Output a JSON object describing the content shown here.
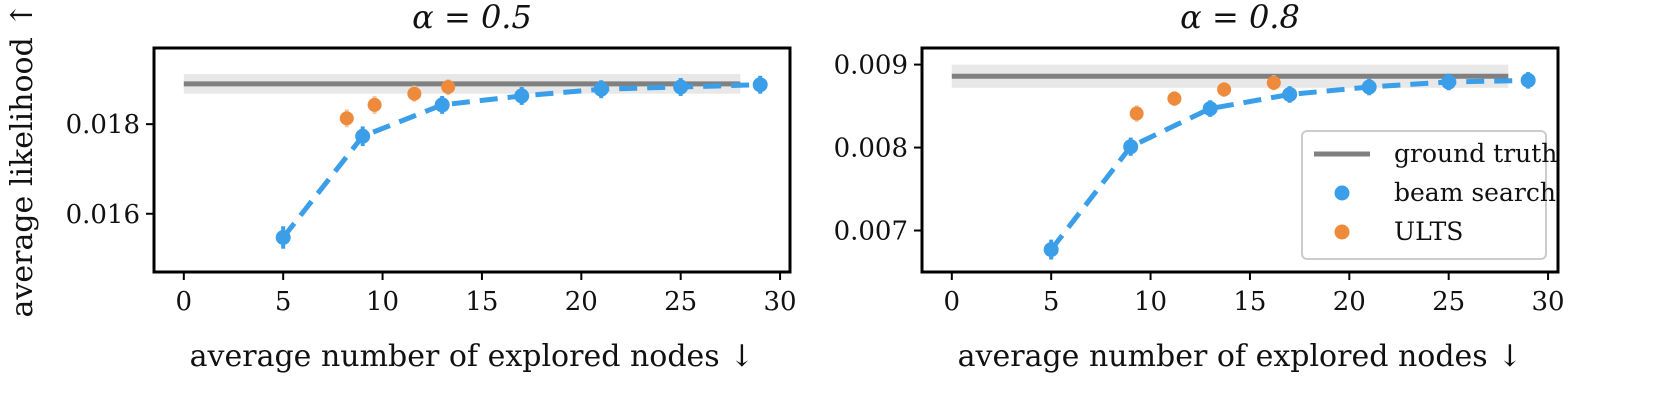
{
  "ylabel": "average likelihood ↑",
  "legend": {
    "entries": [
      {
        "label": "ground truth",
        "kind": "line",
        "color": "#808080"
      },
      {
        "label": "beam search",
        "kind": "dot",
        "color": "#3a9ee8"
      },
      {
        "label": "ULTS",
        "kind": "dot",
        "color": "#ee8a3c"
      }
    ],
    "placement": "lower-right of right panel"
  },
  "colors": {
    "beam": "#3a9ee8",
    "ults": "#ee8a3c",
    "truth": "#808080",
    "truth_band": "#e8e8e8"
  },
  "chart_data": [
    {
      "type": "line",
      "title": "α = 0.5",
      "xlabel": "average number of explored nodes ↓",
      "ylabel": "average likelihood ↑",
      "xlim": [
        -1.5,
        30.5
      ],
      "ylim": [
        0.0147,
        0.0197
      ],
      "xticks": [
        0,
        5,
        10,
        15,
        20,
        25,
        30
      ],
      "yticks": [
        0.016,
        0.018
      ],
      "ytick_labels": [
        "0.016",
        "0.018"
      ],
      "grid": false,
      "ground_truth": {
        "value": 0.0189,
        "band": [
          0.01868,
          0.01912
        ],
        "x_range": [
          0,
          28
        ]
      },
      "series": [
        {
          "name": "beam search",
          "style": "dashed-line-with-points",
          "x": [
            5,
            9,
            13,
            17,
            21,
            25,
            29
          ],
          "y": [
            0.01547,
            0.01773,
            0.01843,
            0.01863,
            0.01878,
            0.01883,
            0.01888
          ],
          "yerr": [
            0.00025,
            0.00022,
            0.0002,
            0.0002,
            0.0002,
            0.0002,
            0.0002
          ]
        },
        {
          "name": "ULTS",
          "style": "points",
          "x": [
            8.2,
            9.6,
            11.6,
            13.3
          ],
          "y": [
            0.01813,
            0.01843,
            0.01868,
            0.01883
          ],
          "yerr": [
            0.0002,
            0.0002,
            0.00018,
            0.00018
          ]
        }
      ]
    },
    {
      "type": "line",
      "title": "α = 0.8",
      "xlabel": "average number of explored nodes ↓",
      "ylabel": "",
      "xlim": [
        -1.5,
        30.5
      ],
      "ylim": [
        0.0065,
        0.0092
      ],
      "xticks": [
        0,
        5,
        10,
        15,
        20,
        25,
        30
      ],
      "yticks": [
        0.007,
        0.008,
        0.009
      ],
      "ytick_labels": [
        "0.007",
        "0.008",
        "0.009"
      ],
      "grid": false,
      "ground_truth": {
        "value": 0.00886,
        "band": [
          0.00872,
          0.009
        ],
        "x_range": [
          0,
          28
        ]
      },
      "series": [
        {
          "name": "beam search",
          "style": "dashed-line-with-points",
          "x": [
            5,
            9,
            13,
            17,
            21,
            25,
            29
          ],
          "y": [
            0.00677,
            0.00801,
            0.00847,
            0.00864,
            0.00873,
            0.00879,
            0.00881
          ],
          "yerr": [
            0.00012,
            0.00011,
            0.0001,
            0.0001,
            0.0001,
            0.0001,
            0.0001
          ]
        },
        {
          "name": "ULTS",
          "style": "points",
          "x": [
            9.3,
            11.2,
            13.7,
            16.2
          ],
          "y": [
            0.00841,
            0.00859,
            0.0087,
            0.00878
          ],
          "yerr": [
            0.0001,
            9e-05,
            9e-05,
            9e-05
          ]
        }
      ]
    }
  ]
}
